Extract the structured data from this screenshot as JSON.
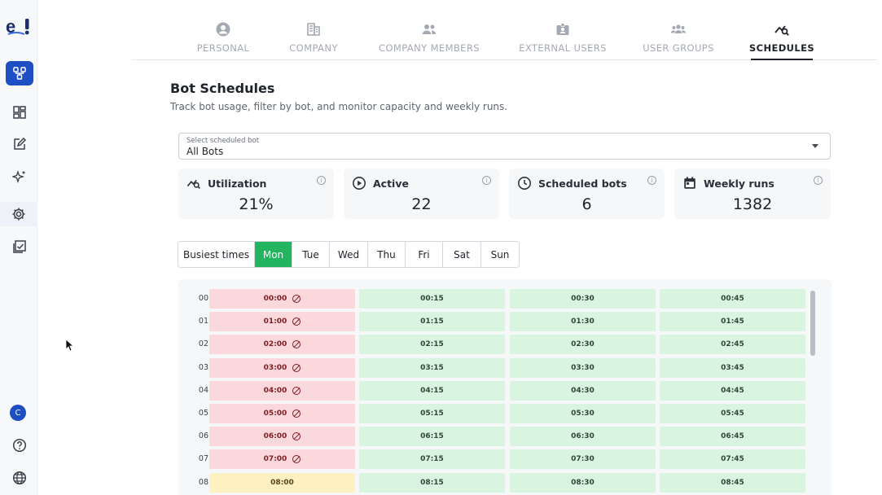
{
  "sidebar": {
    "logo": "e!",
    "items": [
      {
        "icon": "flow-icon",
        "active": true
      },
      {
        "icon": "dashboard-icon"
      },
      {
        "icon": "edit-icon"
      },
      {
        "icon": "sparkle-icon"
      },
      {
        "icon": "gear-icon",
        "selected": true
      },
      {
        "icon": "report-icon"
      }
    ],
    "avatar_initial": "C",
    "bottom": [
      "help-icon",
      "globe-icon"
    ]
  },
  "tabs": [
    {
      "label": "PERSONAL",
      "icon": "person-circle-icon"
    },
    {
      "label": "COMPANY",
      "icon": "building-icon"
    },
    {
      "label": "COMPANY MEMBERS",
      "icon": "members-icon"
    },
    {
      "label": "EXTERNAL USERS",
      "icon": "badge-icon"
    },
    {
      "label": "USER GROUPS",
      "icon": "groups-icon"
    },
    {
      "label": "SCHEDULES",
      "icon": "chart-search-icon",
      "active": true
    }
  ],
  "page": {
    "title": "Bot Schedules",
    "description": "Track bot usage, filter by bot, and monitor capacity and weekly runs."
  },
  "bot_select": {
    "caption": "Select scheduled bot",
    "value": "All Bots"
  },
  "stats": [
    {
      "label": "Utilization",
      "value": "21%",
      "icon": "chart-search-icon"
    },
    {
      "label": "Active",
      "value": "22",
      "icon": "play-circle-icon"
    },
    {
      "label": "Scheduled bots",
      "value": "6",
      "icon": "clock-icon"
    },
    {
      "label": "Weekly runs",
      "value": "1382",
      "icon": "calendar-icon"
    }
  ],
  "day_filter": {
    "options": [
      "Busiest times",
      "Mon",
      "Tue",
      "Wed",
      "Thu",
      "Fri",
      "Sat",
      "Sun"
    ],
    "active": "Mon"
  },
  "schedule_grid": {
    "rows": [
      {
        "hour": "00",
        "slots": [
          {
            "time": "00:00",
            "status": "busy"
          },
          {
            "time": "00:15",
            "status": "free"
          },
          {
            "time": "00:30",
            "status": "free"
          },
          {
            "time": "00:45",
            "status": "free"
          }
        ]
      },
      {
        "hour": "01",
        "slots": [
          {
            "time": "01:00",
            "status": "busy"
          },
          {
            "time": "01:15",
            "status": "free"
          },
          {
            "time": "01:30",
            "status": "free"
          },
          {
            "time": "01:45",
            "status": "free"
          }
        ]
      },
      {
        "hour": "02",
        "slots": [
          {
            "time": "02:00",
            "status": "busy"
          },
          {
            "time": "02:15",
            "status": "free"
          },
          {
            "time": "02:30",
            "status": "free"
          },
          {
            "time": "02:45",
            "status": "free"
          }
        ]
      },
      {
        "hour": "03",
        "slots": [
          {
            "time": "03:00",
            "status": "busy"
          },
          {
            "time": "03:15",
            "status": "free"
          },
          {
            "time": "03:30",
            "status": "free"
          },
          {
            "time": "03:45",
            "status": "free"
          }
        ]
      },
      {
        "hour": "04",
        "slots": [
          {
            "time": "04:00",
            "status": "busy"
          },
          {
            "time": "04:15",
            "status": "free"
          },
          {
            "time": "04:30",
            "status": "free"
          },
          {
            "time": "04:45",
            "status": "free"
          }
        ]
      },
      {
        "hour": "05",
        "slots": [
          {
            "time": "05:00",
            "status": "busy"
          },
          {
            "time": "05:15",
            "status": "free"
          },
          {
            "time": "05:30",
            "status": "free"
          },
          {
            "time": "05:45",
            "status": "free"
          }
        ]
      },
      {
        "hour": "06",
        "slots": [
          {
            "time": "06:00",
            "status": "busy"
          },
          {
            "time": "06:15",
            "status": "free"
          },
          {
            "time": "06:30",
            "status": "free"
          },
          {
            "time": "06:45",
            "status": "free"
          }
        ]
      },
      {
        "hour": "07",
        "slots": [
          {
            "time": "07:00",
            "status": "busy"
          },
          {
            "time": "07:15",
            "status": "free"
          },
          {
            "time": "07:30",
            "status": "free"
          },
          {
            "time": "07:45",
            "status": "free"
          }
        ]
      },
      {
        "hour": "08",
        "slots": [
          {
            "time": "08:00",
            "status": "warn"
          },
          {
            "time": "08:15",
            "status": "free"
          },
          {
            "time": "08:30",
            "status": "free"
          },
          {
            "time": "08:45",
            "status": "free"
          }
        ]
      }
    ]
  },
  "colors": {
    "accent": "#1e4fc2",
    "active_day": "#22b45e",
    "busy": "#fbd8db",
    "warn": "#fdf1c2",
    "free": "#d9f5e0"
  }
}
